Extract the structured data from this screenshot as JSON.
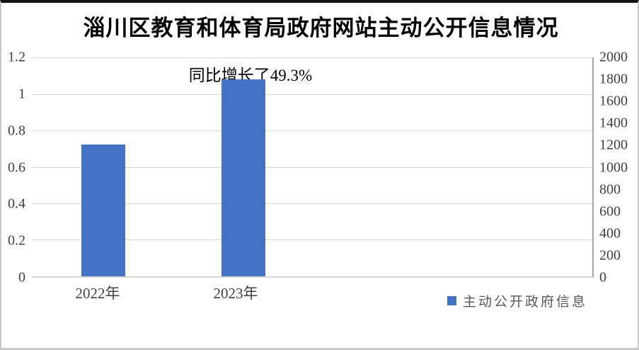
{
  "chart_data": {
    "type": "bar",
    "title": "淄川区教育和体育局政府网站主动公开信息情况",
    "categories": [
      "2022年",
      "2023年"
    ],
    "series": [
      {
        "name": "主动公开政府信息",
        "axis": "right",
        "values": [
          1196,
          1786
        ]
      }
    ],
    "values_on_left_axis_equivalent": [
      0.72,
      1.07
    ],
    "annotation": {
      "text": "同比增长了49.3%",
      "target_category": "2023年"
    },
    "left_axis": {
      "min": 0,
      "max": 1.2,
      "step": 0.2,
      "ticks": [
        "1.2",
        "1",
        "0.8",
        "0.6",
        "0.4",
        "0.2",
        "0"
      ]
    },
    "right_axis": {
      "min": 0,
      "max": 2000,
      "step": 200,
      "ticks": [
        "2000",
        "1800",
        "1600",
        "1400",
        "1200",
        "1000",
        "800",
        "600",
        "400",
        "200",
        "0"
      ]
    },
    "grid": true,
    "gridline_color": "#d9d9d9",
    "bar_color": "#4472c4",
    "legend": {
      "position": "bottom-right",
      "entries": [
        "主动公开政府信息"
      ]
    }
  }
}
